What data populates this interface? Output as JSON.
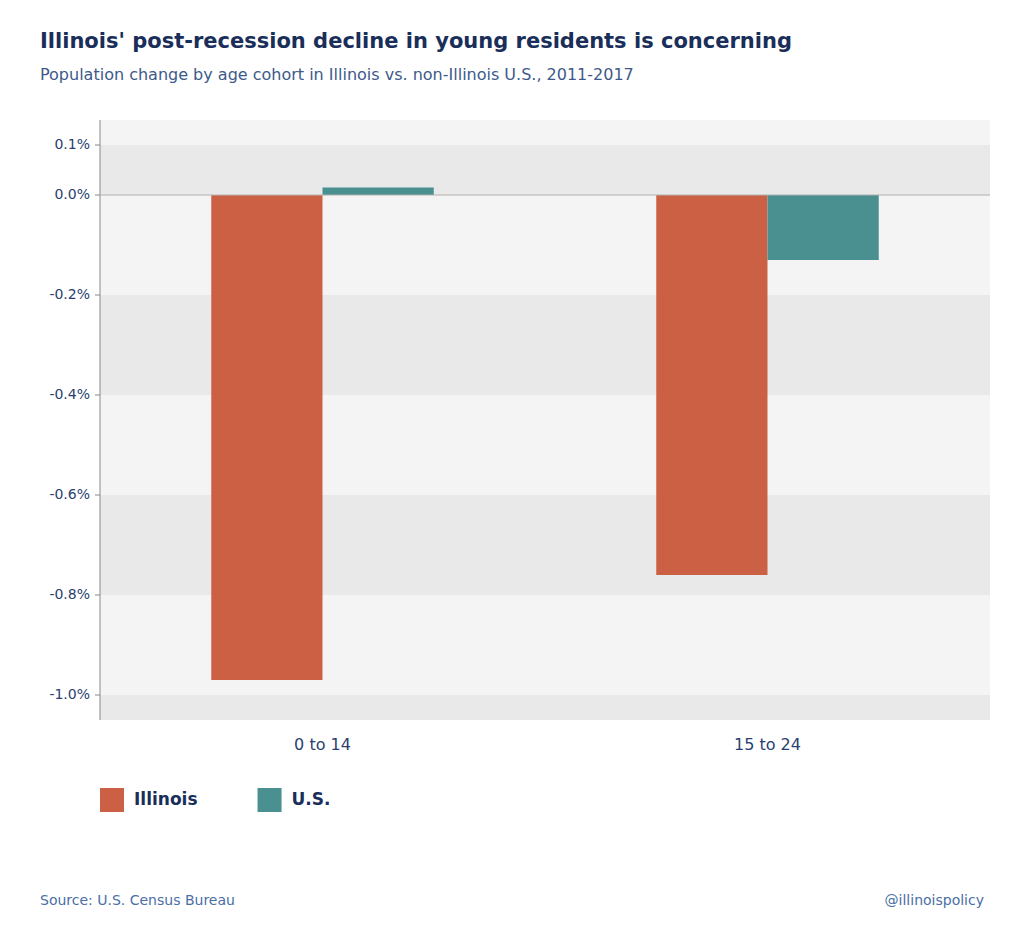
{
  "chart_data": {
    "type": "bar",
    "title": "Illinois' post-recession decline in young residents is concerning",
    "subtitle": "Population change by age cohort in Illinois vs. non-Illinois U.S., 2011-2017",
    "categories": [
      "0 to 14",
      "15 to 24"
    ],
    "series": [
      {
        "name": "Illinois",
        "color": "#CC6044",
        "values": [
          -0.97,
          -0.76
        ]
      },
      {
        "name": "U.S.",
        "color": "#4A9090",
        "values": [
          0.015,
          -0.13
        ]
      }
    ],
    "ylim": [
      -1.05,
      0.15
    ],
    "yticks": [
      {
        "value": 0.1,
        "label": "0.1%"
      },
      {
        "value": 0.0,
        "label": "0.0%"
      },
      {
        "value": -0.2,
        "label": "-0.2%"
      },
      {
        "value": -0.4,
        "label": "-0.4%"
      },
      {
        "value": -0.6,
        "label": "-0.6%"
      },
      {
        "value": -0.8,
        "label": "-0.8%"
      },
      {
        "value": -1.0,
        "label": "-1.0%"
      }
    ],
    "grid": false,
    "legend": "bottom",
    "annotations": [
      "Source: U.S. Census Bureau",
      "@illinoispolicy"
    ]
  }
}
